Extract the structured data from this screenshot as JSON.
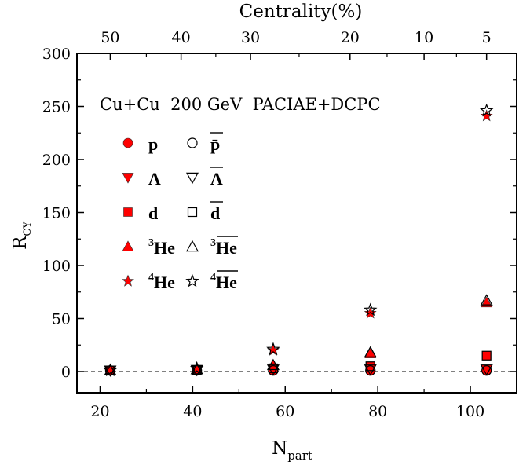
{
  "chart_data": {
    "type": "scatter",
    "title": "",
    "annotation": "Cu+Cu  200 GeV  PACIAE+DCPC",
    "xlabel": "N",
    "xlabel_sub": "part",
    "ylabel": "R",
    "ylabel_sub": "CY",
    "top_axis_label": "Centrality(%)",
    "xlim": [
      15,
      110
    ],
    "ylim": [
      -20,
      300
    ],
    "x_ticks": [
      20,
      40,
      60,
      80,
      100
    ],
    "y_ticks": [
      0,
      50,
      100,
      150,
      200,
      250,
      300
    ],
    "top_ticks": [
      {
        "label": "50",
        "x": 22.2
      },
      {
        "label": "40",
        "x": 37.5
      },
      {
        "label": "30",
        "x": 52.5
      },
      {
        "label": "20",
        "x": 74
      },
      {
        "label": "10",
        "x": 90
      },
      {
        "label": "5",
        "x": 103.5
      }
    ],
    "baseline": 0,
    "legend_placement": "upper-left",
    "x": [
      22.2,
      40.9,
      57.4,
      78.4,
      103.5
    ],
    "series": [
      {
        "name": "p",
        "marker": "circle",
        "filled": true,
        "color": "#ff0000",
        "values": [
          1,
          1,
          1,
          1,
          1
        ]
      },
      {
        "name": "p̄",
        "overline": true,
        "marker": "circle",
        "filled": false,
        "color": "#000000",
        "values": [
          1,
          1,
          1,
          1,
          1
        ]
      },
      {
        "name": "Λ",
        "marker": "triangle-down",
        "filled": true,
        "color": "#ff0000",
        "values": [
          1,
          1.5,
          2,
          2,
          2
        ]
      },
      {
        "name": "Λ",
        "overline": true,
        "marker": "triangle-down",
        "filled": false,
        "color": "#000000",
        "values": [
          1,
          1.5,
          2,
          2,
          2
        ]
      },
      {
        "name": "d",
        "marker": "square",
        "filled": true,
        "color": "#ff0000",
        "values": [
          1,
          1.5,
          3,
          5,
          15
        ]
      },
      {
        "name": "d",
        "overline": true,
        "marker": "square",
        "filled": false,
        "color": "#000000",
        "values": [
          1,
          1.5,
          3,
          5,
          15
        ]
      },
      {
        "name": "He",
        "sup": "3",
        "marker": "triangle-up",
        "filled": true,
        "color": "#ff0000",
        "values": [
          1,
          2,
          6,
          17,
          65
        ]
      },
      {
        "name": "He",
        "sup": "3",
        "overline": true,
        "marker": "triangle-up",
        "filled": false,
        "color": "#000000",
        "values": [
          1,
          2,
          6,
          18,
          67
        ]
      },
      {
        "name": "He",
        "sup": "4",
        "marker": "star",
        "filled": true,
        "color": "#ff0000",
        "values": [
          1,
          3,
          20,
          55,
          241
        ]
      },
      {
        "name": "He",
        "sup": "4",
        "overline": true,
        "marker": "star",
        "filled": false,
        "color": "#000000",
        "values": [
          1,
          3,
          21,
          58,
          246
        ]
      }
    ]
  }
}
